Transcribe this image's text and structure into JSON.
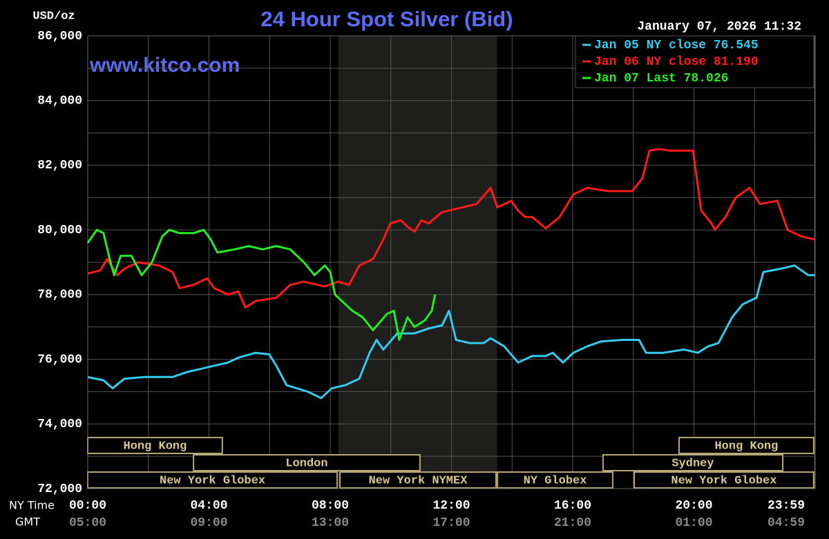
{
  "chart_data": {
    "type": "line",
    "title": "24 Hour Spot Silver (Bid)",
    "y_label": "USD/oz",
    "watermark": "www.kitco.com",
    "timestamp": "January 07, 2026 11:32",
    "x_axis_label": "NY Time",
    "x2_axis_label": "GMT",
    "xlim": [
      0,
      24
    ],
    "ylim": [
      72,
      86
    ],
    "xticks": [
      {
        "value": 0,
        "label": "00:00"
      },
      {
        "value": 4,
        "label": "04:00"
      },
      {
        "value": 8,
        "label": "08:00"
      },
      {
        "value": 12,
        "label": "12:00"
      },
      {
        "value": 16,
        "label": "16:00"
      },
      {
        "value": 20,
        "label": "20:00"
      },
      {
        "value": 23.98,
        "label": "23:59"
      }
    ],
    "x2ticks": [
      {
        "value": 0,
        "label": "05:00"
      },
      {
        "value": 4,
        "label": "09:00"
      },
      {
        "value": 8,
        "label": "13:00"
      },
      {
        "value": 12,
        "label": "17:00"
      },
      {
        "value": 16,
        "label": "21:00"
      },
      {
        "value": 20,
        "label": "01:00"
      },
      {
        "value": 23.98,
        "label": "04:59"
      }
    ],
    "xgrid_minor": [
      2,
      6,
      10,
      14,
      18,
      22
    ],
    "yticks": [
      {
        "value": 72,
        "label": "72,000"
      },
      {
        "value": 74,
        "label": "74,000"
      },
      {
        "value": 76,
        "label": "76,000"
      },
      {
        "value": 78,
        "label": "78,000"
      },
      {
        "value": 80,
        "label": "80,000"
      },
      {
        "value": 82,
        "label": "82,000"
      },
      {
        "value": 84,
        "label": "84,000"
      },
      {
        "value": 86,
        "label": "86,000"
      }
    ],
    "ygrid_minor": [
      73,
      75,
      77,
      79,
      81,
      83,
      85
    ],
    "grid": true,
    "shade": [
      8.27,
      13.51
    ],
    "sessions": [
      [
        {
          "label": "Hong Kong",
          "start": 0,
          "end": 4.44
        },
        {
          "label": "Hong Kong",
          "start": 19.51,
          "end": 23.95
        }
      ],
      [
        {
          "label": "London",
          "start": 3.49,
          "end": 10.96
        },
        {
          "label": "Sydney",
          "start": 17.0,
          "end": 22.93
        }
      ],
      [
        {
          "label": "New York Globex",
          "start": 0,
          "end": 8.23
        },
        {
          "label": "New York NYMEX",
          "start": 8.32,
          "end": 13.47
        },
        {
          "label": "NY Globex",
          "start": 13.52,
          "end": 17.32
        },
        {
          "label": "New York Globex",
          "start": 18.03,
          "end": 23.95
        }
      ]
    ],
    "legend": "upper right",
    "series": [
      {
        "name": "Jan 05 NY close 76.545",
        "color": "#33ccee",
        "x": [
          0,
          0.52,
          0.82,
          1.21,
          1.89,
          2.8,
          3.26,
          3.94,
          4.63,
          4.97,
          5.54,
          5.99,
          6.22,
          6.56,
          6.9,
          7.25,
          7.7,
          8.05,
          8.5,
          8.96,
          9.3,
          9.53,
          9.75,
          10.21,
          10.78,
          11.24,
          11.69,
          11.92,
          12.15,
          12.6,
          13.06,
          13.29,
          13.74,
          14.2,
          14.66,
          15.11,
          15.34,
          15.68,
          16.02,
          16.48,
          16.93,
          17.62,
          18.19,
          18.42,
          18.99,
          19.67,
          20.13,
          20.47,
          20.81,
          21.26,
          21.61,
          22.06,
          22.29,
          22.86,
          23.32,
          23.77,
          24
        ],
        "values": [
          75.45,
          75.35,
          75.1,
          75.4,
          75.45,
          75.45,
          75.6,
          75.75,
          75.9,
          76.05,
          76.2,
          76.15,
          75.8,
          75.2,
          75.1,
          75.0,
          74.8,
          75.1,
          75.2,
          75.4,
          76.2,
          76.6,
          76.3,
          76.8,
          76.8,
          76.95,
          77.05,
          77.5,
          76.6,
          76.5,
          76.5,
          76.65,
          76.4,
          75.9,
          76.1,
          76.1,
          76.2,
          75.9,
          76.2,
          76.4,
          76.55,
          76.6,
          76.6,
          76.2,
          76.2,
          76.3,
          76.2,
          76.4,
          76.5,
          77.3,
          77.7,
          77.9,
          78.7,
          78.8,
          78.9,
          78.6,
          78.6
        ]
      },
      {
        "name": "Jan 06 NY close 81.190",
        "color": "#ff1a1a",
        "x": [
          0,
          0.41,
          0.64,
          0.98,
          1.21,
          1.66,
          2.35,
          2.8,
          3.03,
          3.49,
          3.94,
          4.17,
          4.63,
          4.97,
          5.2,
          5.54,
          6.22,
          6.68,
          7.13,
          7.82,
          8.27,
          8.62,
          8.96,
          9.41,
          9.75,
          9.98,
          10.33,
          10.55,
          10.78,
          11.01,
          11.24,
          11.69,
          12.15,
          12.83,
          13.29,
          13.51,
          13.97,
          14.2,
          14.43,
          14.66,
          15.11,
          15.57,
          16.02,
          16.48,
          17.16,
          17.96,
          18.3,
          18.53,
          18.87,
          19.21,
          19.97,
          20.24,
          20.58,
          20.69,
          21.04,
          21.38,
          21.83,
          22.18,
          22.75,
          23.09,
          23.54,
          24
        ],
        "values": [
          78.65,
          78.75,
          79.1,
          78.6,
          78.8,
          79.0,
          78.9,
          78.7,
          78.2,
          78.3,
          78.5,
          78.2,
          78.0,
          78.1,
          77.6,
          77.8,
          77.9,
          78.3,
          78.4,
          78.25,
          78.4,
          78.3,
          78.9,
          79.1,
          79.7,
          80.2,
          80.3,
          80.1,
          79.95,
          80.3,
          80.2,
          80.55,
          80.65,
          80.8,
          81.3,
          80.7,
          80.9,
          80.6,
          80.4,
          80.4,
          80.05,
          80.4,
          81.1,
          81.3,
          81.2,
          81.2,
          81.6,
          82.45,
          82.5,
          82.45,
          82.45,
          80.6,
          80.2,
          80.0,
          80.4,
          81.0,
          81.3,
          80.8,
          80.9,
          80.0,
          79.8,
          79.7
        ]
      },
      {
        "name": "Jan 07 Last 78.026",
        "color": "#22ee22",
        "x": [
          0,
          0.3,
          0.52,
          0.75,
          0.87,
          1.09,
          1.44,
          1.78,
          2.12,
          2.46,
          2.69,
          3.03,
          3.49,
          3.83,
          4.06,
          4.28,
          4.85,
          5.31,
          5.77,
          6.22,
          6.68,
          7.13,
          7.48,
          7.82,
          8.0,
          8.16,
          8.5,
          8.73,
          9.07,
          9.41,
          9.87,
          10.1,
          10.28,
          10.55,
          10.78,
          11.12,
          11.35,
          11.46
        ],
        "values": [
          79.6,
          80.0,
          79.9,
          79.0,
          78.6,
          79.2,
          79.2,
          78.6,
          79.0,
          79.8,
          80.0,
          79.9,
          79.9,
          80.0,
          79.7,
          79.3,
          79.4,
          79.5,
          79.4,
          79.5,
          79.4,
          79.0,
          78.6,
          78.9,
          78.7,
          78.0,
          77.7,
          77.5,
          77.3,
          76.9,
          77.4,
          77.5,
          76.6,
          77.3,
          77.0,
          77.2,
          77.5,
          78.0
        ]
      }
    ]
  }
}
